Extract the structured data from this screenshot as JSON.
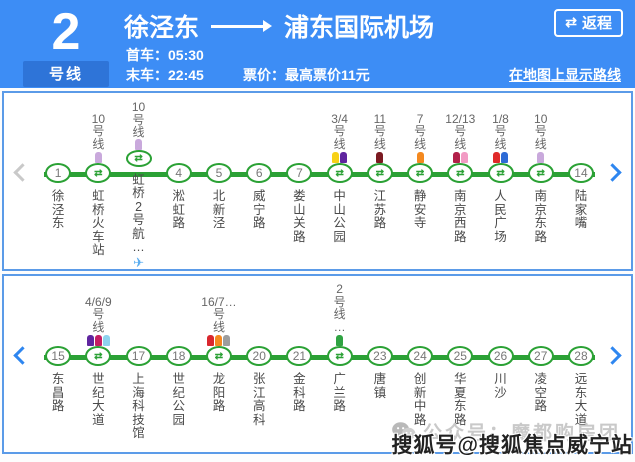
{
  "header": {
    "line_number": "2",
    "line_suffix": "号线",
    "origin": "徐泾东",
    "destination": "浦东国际机场",
    "first_train": "首车：05:30",
    "last_train": "末车：22:45",
    "fare": "票价：最高票价11元",
    "map_link": "在地图上显示路线",
    "return_label": "返程",
    "return_icon_glyph": "⇄"
  },
  "icons": {
    "transfer_glyph": "⇄",
    "plane_glyph": "✈"
  },
  "colors": {
    "header_bg": "#3d8df5",
    "header_badge_bg": "#2e74d8",
    "line_green": "#2ba135",
    "panel_border": "#5b9be8",
    "chevron_blue": "#2e86f0",
    "chevron_dim": "#c9c9c9"
  },
  "rows": [
    {
      "left_chevron_active": false,
      "stations": [
        {
          "num": "1",
          "name": "徐泾东"
        },
        {
          "name": "虹桥火车站",
          "transfer": {
            "label_lines": [
              "10",
              "号",
              "线"
            ],
            "markers": [
              "#c9a9dc"
            ]
          }
        },
        {
          "name": "虹桥2号航…",
          "plane": true,
          "transfer": {
            "label_lines": [
              "10",
              "号",
              "线"
            ],
            "markers": [
              "#c9a9dc"
            ]
          }
        },
        {
          "num": "4",
          "name": "淞虹路"
        },
        {
          "num": "5",
          "name": "北新泾"
        },
        {
          "num": "6",
          "name": "威宁路"
        },
        {
          "num": "7",
          "name": "娄山关路"
        },
        {
          "name": "中山公园",
          "transfer": {
            "label_lines": [
              "3/4",
              "号",
              "线"
            ],
            "markers": [
              "#f7d117",
              "#5f259f"
            ]
          }
        },
        {
          "name": "江苏路",
          "transfer": {
            "label_lines": [
              "11",
              "号",
              "线"
            ],
            "markers": [
              "#7b1a21"
            ]
          }
        },
        {
          "name": "静安寺",
          "transfer": {
            "label_lines": [
              "7",
              "号",
              "线"
            ],
            "markers": [
              "#f4891f"
            ]
          }
        },
        {
          "name": "南京西路",
          "transfer": {
            "label_lines": [
              "12/13",
              "号",
              "线"
            ],
            "markers": [
              "#b22049",
              "#f29bc4"
            ]
          }
        },
        {
          "name": "人民广场",
          "transfer": {
            "label_lines": [
              "1/8",
              "号",
              "线"
            ],
            "markers": [
              "#e02a2a",
              "#2e6bd6"
            ]
          }
        },
        {
          "name": "南京东路",
          "transfer": {
            "label_lines": [
              "10",
              "号",
              "线"
            ],
            "markers": [
              "#c9a9dc"
            ]
          }
        },
        {
          "num": "14",
          "name": "陆家嘴"
        }
      ]
    },
    {
      "left_chevron_active": true,
      "stations": [
        {
          "num": "15",
          "name": "东昌路"
        },
        {
          "name": "世纪大道",
          "transfer": {
            "label_lines": [
              "4/6/9",
              "号",
              "线"
            ],
            "markers": [
              "#5f259f",
              "#c41e63",
              "#8ed3ee"
            ]
          }
        },
        {
          "num": "17",
          "name": "上海科技馆"
        },
        {
          "num": "18",
          "name": "世纪公园"
        },
        {
          "name": "龙阳路",
          "transfer": {
            "label_lines": [
              "16/7…",
              "号",
              "线"
            ],
            "markers": [
              "#d9272e",
              "#f4891f",
              "#9d9d9d"
            ]
          }
        },
        {
          "num": "20",
          "name": "张江高科"
        },
        {
          "num": "21",
          "name": "金科路"
        },
        {
          "name": "广兰路",
          "transfer": {
            "label_lines": [
              "2",
              "号",
              "线",
              "…"
            ],
            "markers": [
              "#2fa342"
            ]
          }
        },
        {
          "num": "23",
          "name": "唐镇"
        },
        {
          "num": "24",
          "name": "创新中路"
        },
        {
          "num": "25",
          "name": "华夏东路"
        },
        {
          "num": "26",
          "name": "川沙"
        },
        {
          "num": "27",
          "name": "凌空路"
        },
        {
          "num": "28",
          "name": "远东大道"
        }
      ]
    }
  ],
  "watermark": {
    "back": "公众号：魔都购房团",
    "front": "搜狐号@搜狐焦点威宁站"
  }
}
